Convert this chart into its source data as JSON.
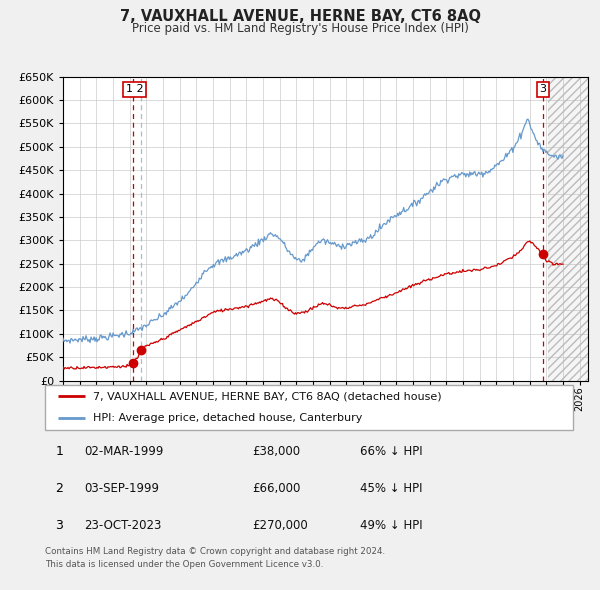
{
  "title": "7, VAUXHALL AVENUE, HERNE BAY, CT6 8AQ",
  "subtitle": "Price paid vs. HM Land Registry's House Price Index (HPI)",
  "legend_line1": "7, VAUXHALL AVENUE, HERNE BAY, CT6 8AQ (detached house)",
  "legend_line2": "HPI: Average price, detached house, Canterbury",
  "footnote1": "Contains HM Land Registry data © Crown copyright and database right 2024.",
  "footnote2": "This data is licensed under the Open Government Licence v3.0.",
  "transactions": [
    {
      "id": 1,
      "date_x": 1999.17,
      "price": 38000,
      "label": "02-MAR-1999",
      "price_label": "£38,000",
      "hpi_label": "66% ↓ HPI"
    },
    {
      "id": 2,
      "date_x": 1999.67,
      "price": 66000,
      "label": "03-SEP-1999",
      "price_label": "£66,000",
      "hpi_label": "45% ↓ HPI"
    },
    {
      "id": 3,
      "date_x": 2023.8,
      "price": 270000,
      "label": "23-OCT-2023",
      "price_label": "£270,000",
      "hpi_label": "49% ↓ HPI"
    }
  ],
  "red_line_color": "#cc0000",
  "blue_line_color": "#6699cc",
  "vline_color_red": "#cc0000",
  "vline_color_blue": "#aabbcc",
  "xmin": 1995.0,
  "xmax": 2026.5,
  "ymin": 0,
  "ymax": 650000,
  "yticks": [
    0,
    50000,
    100000,
    150000,
    200000,
    250000,
    300000,
    350000,
    400000,
    450000,
    500000,
    550000,
    600000,
    650000
  ],
  "background_color": "#f0f0f0",
  "plot_bg_color": "#ffffff",
  "grid_color": "#cccccc",
  "hpi_anchors": [
    [
      1995.0,
      85000
    ],
    [
      1996.0,
      88000
    ],
    [
      1997.0,
      90000
    ],
    [
      1998.0,
      95000
    ],
    [
      1999.0,
      102000
    ],
    [
      1999.5,
      108000
    ],
    [
      2000.0,
      118000
    ],
    [
      2001.0,
      140000
    ],
    [
      2002.0,
      170000
    ],
    [
      2002.5,
      185000
    ],
    [
      2003.0,
      210000
    ],
    [
      2003.5,
      235000
    ],
    [
      2004.0,
      248000
    ],
    [
      2005.0,
      262000
    ],
    [
      2005.5,
      270000
    ],
    [
      2006.0,
      278000
    ],
    [
      2007.0,
      302000
    ],
    [
      2007.5,
      315000
    ],
    [
      2008.0,
      305000
    ],
    [
      2008.5,
      278000
    ],
    [
      2009.0,
      258000
    ],
    [
      2009.3,
      255000
    ],
    [
      2009.7,
      270000
    ],
    [
      2010.0,
      285000
    ],
    [
      2010.5,
      300000
    ],
    [
      2011.0,
      295000
    ],
    [
      2011.5,
      288000
    ],
    [
      2012.0,
      290000
    ],
    [
      2012.5,
      295000
    ],
    [
      2013.0,
      298000
    ],
    [
      2013.5,
      308000
    ],
    [
      2014.0,
      325000
    ],
    [
      2014.5,
      342000
    ],
    [
      2015.0,
      355000
    ],
    [
      2016.0,
      375000
    ],
    [
      2016.5,
      390000
    ],
    [
      2017.0,
      405000
    ],
    [
      2017.5,
      420000
    ],
    [
      2018.0,
      432000
    ],
    [
      2018.5,
      438000
    ],
    [
      2019.0,
      440000
    ],
    [
      2019.5,
      442000
    ],
    [
      2020.0,
      443000
    ],
    [
      2020.5,
      448000
    ],
    [
      2021.0,
      460000
    ],
    [
      2021.5,
      475000
    ],
    [
      2022.0,
      498000
    ],
    [
      2022.3,
      515000
    ],
    [
      2022.6,
      535000
    ],
    [
      2022.83,
      562000
    ],
    [
      2023.0,
      548000
    ],
    [
      2023.3,
      522000
    ],
    [
      2023.5,
      508000
    ],
    [
      2023.7,
      498000
    ],
    [
      2023.83,
      492000
    ],
    [
      2024.0,
      488000
    ],
    [
      2024.3,
      482000
    ],
    [
      2024.6,
      478000
    ],
    [
      2025.0,
      480000
    ]
  ],
  "red_anchors": [
    [
      1995.0,
      27000
    ],
    [
      1996.0,
      27500
    ],
    [
      1997.0,
      28000
    ],
    [
      1998.0,
      29500
    ],
    [
      1999.0,
      31000
    ],
    [
      1999.17,
      38000
    ],
    [
      1999.5,
      50000
    ],
    [
      1999.67,
      66000
    ],
    [
      2000.0,
      73000
    ],
    [
      2001.0,
      89000
    ],
    [
      2002.0,
      108000
    ],
    [
      2003.0,
      126000
    ],
    [
      2003.5,
      136000
    ],
    [
      2004.0,
      146000
    ],
    [
      2004.5,
      150000
    ],
    [
      2005.0,
      153000
    ],
    [
      2005.5,
      156000
    ],
    [
      2006.0,
      159000
    ],
    [
      2007.0,
      170000
    ],
    [
      2007.5,
      175000
    ],
    [
      2008.0,
      168000
    ],
    [
      2008.5,
      152000
    ],
    [
      2009.0,
      143000
    ],
    [
      2009.5,
      147000
    ],
    [
      2010.0,
      155000
    ],
    [
      2010.5,
      165000
    ],
    [
      2011.0,
      162000
    ],
    [
      2011.5,
      155000
    ],
    [
      2012.0,
      155000
    ],
    [
      2012.5,
      160000
    ],
    [
      2013.0,
      161000
    ],
    [
      2013.5,
      168000
    ],
    [
      2014.0,
      175000
    ],
    [
      2015.0,
      188000
    ],
    [
      2016.0,
      203000
    ],
    [
      2017.0,
      217000
    ],
    [
      2018.0,
      228000
    ],
    [
      2019.0,
      234000
    ],
    [
      2020.0,
      237000
    ],
    [
      2021.0,
      246000
    ],
    [
      2021.5,
      255000
    ],
    [
      2022.0,
      265000
    ],
    [
      2022.5,
      278000
    ],
    [
      2022.75,
      292000
    ],
    [
      2023.0,
      298000
    ],
    [
      2023.2,
      293000
    ],
    [
      2023.5,
      282000
    ],
    [
      2023.7,
      274000
    ],
    [
      2023.8,
      270000
    ],
    [
      2024.0,
      255000
    ],
    [
      2024.5,
      248000
    ],
    [
      2025.0,
      250000
    ]
  ]
}
